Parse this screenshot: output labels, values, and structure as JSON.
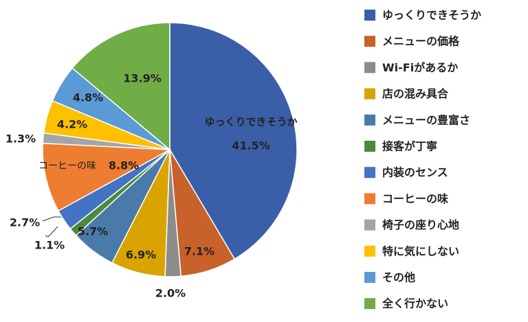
{
  "chart_data": {
    "type": "pie",
    "categories": [
      "ゆっくりできそうか",
      "メニューの価格",
      "Wi-Fiがあるか",
      "店の混み具合",
      "メニューの豊富さ",
      "接客が丁寧",
      "内装のセンス",
      "コーヒーの味",
      "椅子の座り心地",
      "特に気にしない",
      "その他",
      "全く行かない"
    ],
    "values": [
      41.5,
      7.1,
      2.0,
      6.9,
      5.7,
      1.1,
      2.7,
      8.8,
      1.3,
      4.2,
      4.8,
      13.9
    ],
    "value_labels": [
      "41.5%",
      "7.1%",
      "2.0%",
      "6.9%",
      "5.7%",
      "1.1%",
      "2.7%",
      "8.8%",
      "1.3%",
      "4.2%",
      "4.8%",
      "13.9%"
    ],
    "colors": [
      "#3a5fa8",
      "#c8612a",
      "#8c8c8c",
      "#d9a300",
      "#4a7aaa",
      "#4a8a3a",
      "#4472c4",
      "#ed7d31",
      "#a5a5a5",
      "#ffc000",
      "#5b9bd5",
      "#70ad47"
    ],
    "legend": "right"
  }
}
